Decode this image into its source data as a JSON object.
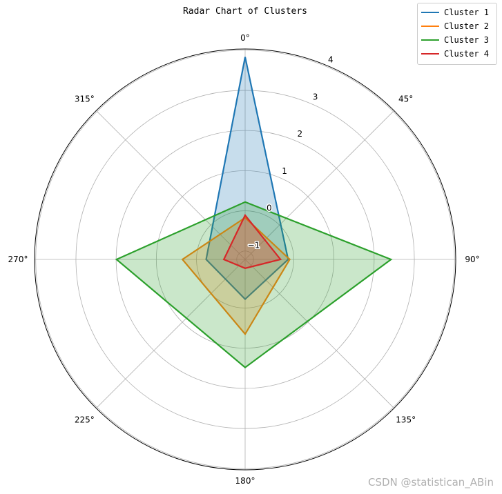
{
  "chart_data": {
    "type": "radar",
    "title": "Radar Chart of Clusters",
    "angle_labels": [
      "0°",
      "45°",
      "90°",
      "135°",
      "180°",
      "225°",
      "270°",
      "315°"
    ],
    "axes_angles_deg": [
      0,
      90,
      180,
      270
    ],
    "radial_ticks": [
      -1,
      0,
      1,
      2,
      3,
      4
    ],
    "radial_tick_labels": [
      "−1",
      "0",
      "1",
      "2",
      "3",
      "4"
    ],
    "rlim": [
      -1.21,
      4.03
    ],
    "grid": true,
    "legend_position": "top-right",
    "series": [
      {
        "name": "Cluster 1",
        "color": "#1f77b4",
        "values": [
          3.83,
          -0.14,
          -0.22,
          -0.24
        ]
      },
      {
        "name": "Cluster 2",
        "color": "#ff7f0e",
        "values": [
          -0.17,
          -0.1,
          0.65,
          0.35
        ]
      },
      {
        "name": "Cluster 3",
        "color": "#2ca02c",
        "values": [
          0.22,
          2.42,
          1.48,
          1.99
        ]
      },
      {
        "name": "Cluster 4",
        "color": "#d62728",
        "values": [
          -0.11,
          -0.33,
          -0.99,
          -0.68
        ]
      }
    ]
  },
  "watermark": "CSDN @statistican_ABin"
}
